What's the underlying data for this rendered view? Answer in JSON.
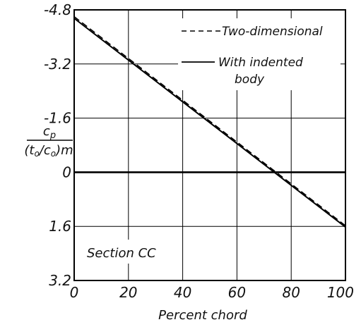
{
  "chart_data": {
    "type": "line",
    "xlabel": "Percent chord",
    "ylabel_numerator": "c_p",
    "ylabel_denominator": "(t₀/c₀)m",
    "xlim": [
      0,
      100
    ],
    "ylim": [
      3.2,
      -4.8
    ],
    "x_ticks": [
      0,
      20,
      40,
      60,
      80,
      100
    ],
    "x_tick_labels": [
      "0",
      "20",
      "40",
      "60",
      "80",
      "100"
    ],
    "y_ticks": [
      -4.8,
      -3.2,
      -1.6,
      0,
      1.6,
      3.2
    ],
    "y_tick_labels": [
      "-4.8",
      "-3.2",
      "-1.6",
      "0",
      "1.6",
      "3.2"
    ],
    "inverted_y": true,
    "grid": true,
    "annotation": "Section CC",
    "legend_position": "top-right",
    "series": [
      {
        "name": "Two-dimensional",
        "style": "dashed",
        "x": [
          0,
          100
        ],
        "y": [
          -4.6,
          1.58
        ]
      },
      {
        "name": "With indented body",
        "legend_lines": [
          "With  indented",
          "body"
        ],
        "style": "solid",
        "x": [
          0,
          100
        ],
        "y": [
          -4.55,
          1.62
        ]
      }
    ]
  }
}
